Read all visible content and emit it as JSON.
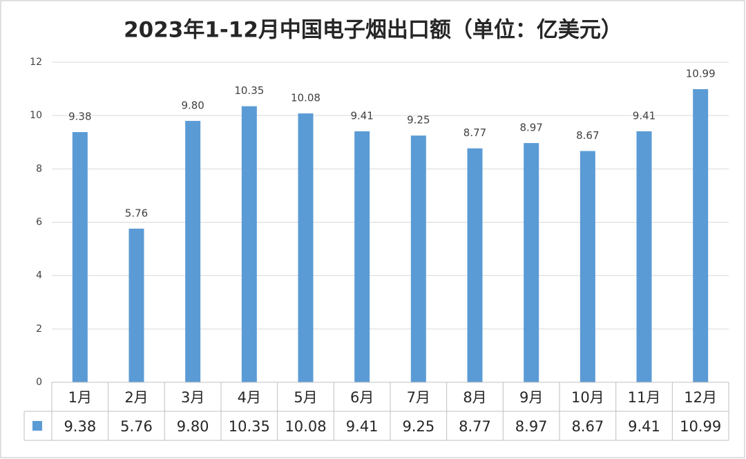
{
  "chart_data": {
    "type": "bar",
    "title": "2023年1-12月中国电子烟出口额（单位：亿美元）",
    "categories": [
      "1月",
      "2月",
      "3月",
      "4月",
      "5月",
      "6月",
      "7月",
      "8月",
      "9月",
      "10月",
      "11月",
      "12月"
    ],
    "series": [
      {
        "color": "#5b9bd5",
        "values": [
          9.38,
          5.76,
          9.8,
          10.35,
          10.08,
          9.41,
          9.25,
          8.77,
          8.97,
          8.67,
          9.41,
          10.99
        ],
        "value_labels": [
          "9.38",
          "5.76",
          "9.80",
          "10.35",
          "10.08",
          "9.41",
          "9.25",
          "8.77",
          "8.97",
          "8.67",
          "9.41",
          "10.99"
        ]
      }
    ],
    "ylim": [
      0,
      12
    ],
    "yticks": [
      0,
      2,
      4,
      6,
      8,
      10,
      12
    ],
    "grid": true,
    "data_table": true
  }
}
